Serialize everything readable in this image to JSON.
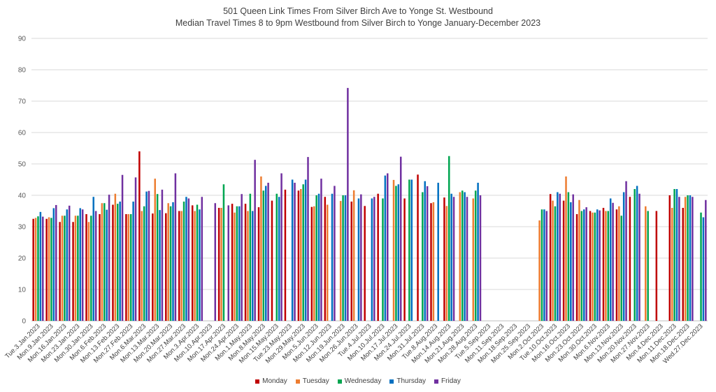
{
  "chart_data": {
    "type": "bar",
    "title": "501 Queen Link Times From Silver Birch Ave to Yonge St. Westbound",
    "subtitle": "Median Travel Times 8 to 9pm Westbound from Silver Birch to Yonge January-December 2023",
    "ylim": [
      0,
      90
    ],
    "yticks": [
      0,
      10,
      20,
      30,
      40,
      50,
      60,
      70,
      80,
      90
    ],
    "grid": true,
    "legend_position": "bottom",
    "categories": [
      "Tue.3.Jan.2023",
      "Mon.9.Jan.2023",
      "Mon.16.Jan.2023",
      "Mon.23.Jan.2023",
      "Mon.30.Jan.2023",
      "Mon.6.Feb.2023",
      "Mon.13.Feb.2023",
      "Mon.27.Feb.2023",
      "Mon.6.Mar.2023",
      "Mon.13.Mar.2023",
      "Mon.20.Mar.2023",
      "Mon.27.Mar.2023",
      "Mon.3.Apr.2023",
      "Mon.10.Apr.2023",
      "Mon.17.Apr.2023",
      "Mon.24.Apr.2023",
      "Mon.1.May.2023",
      "Mon.8.May.2023",
      "Mon.15.May.2023",
      "Tue.23.May.2023",
      "Mon.29.May.2023",
      "Mon.5.Jun.2023",
      "Mon.12.Jun.2023",
      "Mon.19.Jun.2023",
      "Mon.26.Jun.2023",
      "Tue.4.Jul.2023",
      "Mon.10.Jul.2023",
      "Mon.17.Jul.2023",
      "Mon.24.Jul.2023",
      "Mon.31.Jul.2023",
      "Tue.8.Aug.2023",
      "Mon.14.Aug.2023",
      "Mon.21.Aug.2023",
      "Mon.28.Aug.2023",
      "Tue.5.Sep.2023",
      "Mon.11.Sep.2023",
      "Mon.18.Sep.2023",
      "Mon.25.Sep.2023",
      "Mon.2.Oct.2023",
      "Tue.10.Oct.2023",
      "Mon.16.Oct.2023",
      "Mon.23.Oct.2023",
      "Mon.30.Oct.2023",
      "Mon.6.Nov.2023",
      "Mon.13.Nov.2023",
      "Mon.20.Nov.2023",
      "Mon.27.Nov.2023",
      "Mon.4.Dec.2023",
      "Mon.11.Dec.2023",
      "Mon.18.Dec.2023",
      "Wed.27.Dec.2023"
    ],
    "series": [
      {
        "name": "Monday",
        "color": "#c00000",
        "values": [
          32.5,
          32.5,
          31.5,
          31.5,
          34.0,
          34.0,
          37.0,
          34.0,
          54.0,
          34.2,
          34.3,
          35.0,
          36.8,
          null,
          36.0,
          37.3,
          37.3,
          36.2,
          38.3,
          41.8,
          41.5,
          36.3,
          39.5,
          null,
          38.0,
          36.6,
          40.5,
          null,
          39.0,
          46.6,
          37.5,
          39.3,
          null,
          null,
          null,
          null,
          null,
          null,
          null,
          40.4,
          38.3,
          34.0,
          35.0,
          36.0,
          35.5,
          39.5,
          null,
          35.0,
          40.0,
          36.0,
          null
        ]
      },
      {
        "name": "Tuesday",
        "color": "#ed7d31",
        "values": [
          32.8,
          33.0,
          33.5,
          33.5,
          31.5,
          37.5,
          40.5,
          34.0,
          35.0,
          45.3,
          37.5,
          35.0,
          35.0,
          null,
          36.0,
          34.5,
          35.0,
          46.0,
          null,
          null,
          42.0,
          36.5,
          37.0,
          38.2,
          41.6,
          null,
          null,
          44.9,
          null,
          null,
          37.8,
          36.6,
          41.0,
          39.0,
          null,
          null,
          null,
          null,
          32.0,
          38.3,
          46.0,
          38.5,
          34.5,
          35.0,
          36.5,
          null,
          36.5,
          null,
          36.0,
          39.5,
          null
        ]
      },
      {
        "name": "Wednesday",
        "color": "#00a550",
        "values": [
          33.3,
          32.8,
          33.5,
          33.5,
          33.5,
          37.5,
          37.3,
          34.0,
          36.5,
          40.4,
          36.5,
          38.0,
          37.0,
          null,
          43.5,
          36.5,
          40.5,
          41.5,
          40.5,
          null,
          43.5,
          40.0,
          null,
          40.0,
          null,
          null,
          39.0,
          43.0,
          45.0,
          41.0,
          null,
          52.5,
          41.5,
          41.5,
          null,
          null,
          null,
          null,
          35.5,
          36.5,
          41.0,
          35.0,
          34.5,
          35.0,
          33.5,
          42.0,
          35.0,
          null,
          42.0,
          40.0,
          34.5
        ]
      },
      {
        "name": "Thursday",
        "color": "#0070c0",
        "values": [
          34.7,
          35.9,
          35.5,
          35.9,
          39.5,
          35.4,
          38.0,
          38.0,
          41.2,
          35.3,
          37.8,
          39.5,
          35.5,
          null,
          null,
          36.5,
          35.0,
          43.0,
          39.5,
          45.0,
          45.0,
          40.5,
          40.5,
          40.0,
          39.0,
          39.0,
          46.3,
          43.5,
          45.0,
          44.5,
          44.0,
          40.5,
          41.0,
          44.0,
          null,
          null,
          null,
          null,
          35.5,
          41.0,
          37.8,
          35.5,
          35.5,
          39.0,
          41.0,
          43.0,
          null,
          null,
          42.0,
          40.0,
          33.0
        ]
      },
      {
        "name": "Friday",
        "color": "#7030a0",
        "values": [
          33.2,
          36.9,
          36.7,
          35.5,
          35.0,
          40.2,
          46.5,
          45.7,
          41.4,
          41.8,
          47.0,
          39.0,
          39.5,
          37.5,
          36.8,
          40.4,
          51.3,
          44.0,
          47.0,
          44.0,
          52.2,
          45.3,
          43.0,
          74.2,
          40.3,
          39.5,
          47.0,
          52.3,
          null,
          42.9,
          null,
          39.5,
          39.5,
          40.0,
          null,
          null,
          null,
          null,
          35.0,
          40.5,
          40.3,
          36.2,
          35.2,
          37.6,
          44.5,
          40.5,
          null,
          null,
          39.5,
          39.5,
          38.5
        ]
      }
    ]
  }
}
